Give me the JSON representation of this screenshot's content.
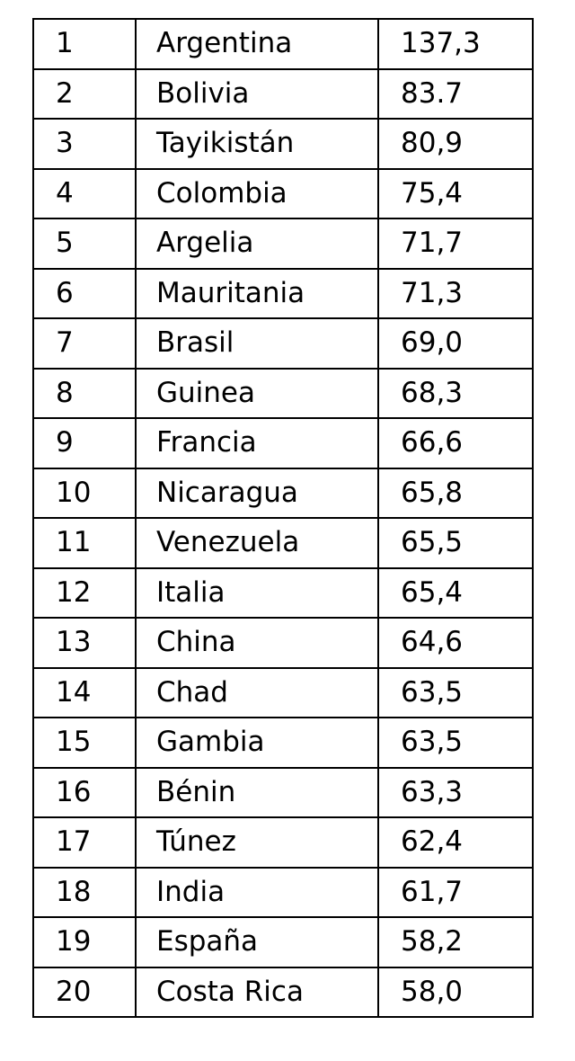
{
  "table": {
    "rows": [
      {
        "rank": "1",
        "country": "Argentina",
        "value": "137,3"
      },
      {
        "rank": "2",
        "country": "Bolivia",
        "value": "83.7"
      },
      {
        "rank": "3",
        "country": "Tayikistán",
        "value": "80,9"
      },
      {
        "rank": "4",
        "country": "Colombia",
        "value": "75,4"
      },
      {
        "rank": "5",
        "country": "Argelia",
        "value": "71,7"
      },
      {
        "rank": "6",
        "country": "Mauritania",
        "value": "71,3"
      },
      {
        "rank": "7",
        "country": "Brasil",
        "value": "69,0"
      },
      {
        "rank": "8",
        "country": "Guinea",
        "value": "68,3"
      },
      {
        "rank": "9",
        "country": "Francia",
        "value": "66,6"
      },
      {
        "rank": "10",
        "country": "Nicaragua",
        "value": "65,8"
      },
      {
        "rank": "11",
        "country": "Venezuela",
        "value": "65,5"
      },
      {
        "rank": "12",
        "country": "Italia",
        "value": "65,4"
      },
      {
        "rank": "13",
        "country": "China",
        "value": "64,6"
      },
      {
        "rank": "14",
        "country": "Chad",
        "value": "63,5"
      },
      {
        "rank": "15",
        "country": "Gambia",
        "value": "63,5"
      },
      {
        "rank": "16",
        "country": "Bénin",
        "value": "63,3"
      },
      {
        "rank": "17",
        "country": "Túnez",
        "value": "62,4"
      },
      {
        "rank": "18",
        "country": "India",
        "value": "61,7"
      },
      {
        "rank": "19",
        "country": "España",
        "value": "58,2"
      },
      {
        "rank": "20",
        "country": "Costa Rica",
        "value": "58,0"
      }
    ]
  }
}
